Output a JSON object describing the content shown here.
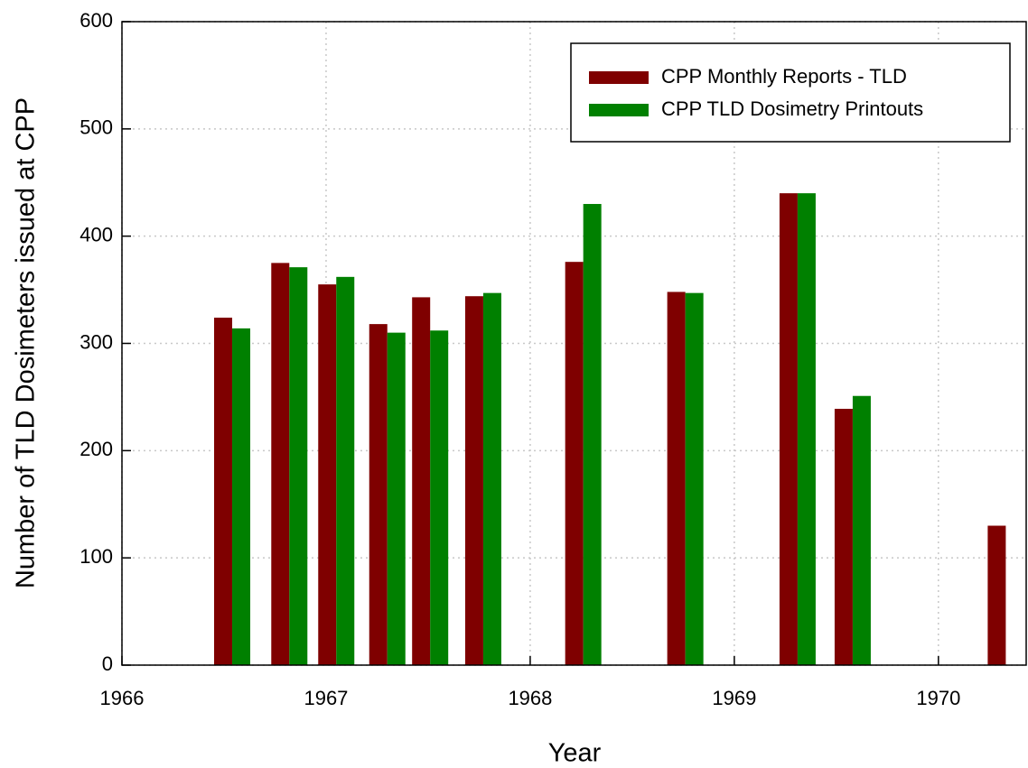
{
  "chart_data": {
    "type": "bar",
    "x_label": "Year",
    "y_label": "Number of TLD Dosimeters issued at CPP",
    "x": [
      1966.54,
      1966.82,
      1967.05,
      1967.3,
      1967.51,
      1967.77,
      1968.26,
      1968.76,
      1969.31,
      1969.58,
      1970.33
    ],
    "series": [
      {
        "name": "CPP Monthly Reports - TLD",
        "color": "#7f0000",
        "values": [
          324,
          375,
          355,
          318,
          343,
          344,
          376,
          348,
          440,
          239,
          130
        ]
      },
      {
        "name": "CPP TLD Dosimetry Printouts",
        "color": "#008000",
        "values": [
          314,
          371,
          362,
          310,
          312,
          347,
          430,
          347,
          440,
          251,
          null
        ]
      }
    ],
    "xlim": [
      1966,
      1970.43
    ],
    "xticks": [
      1966,
      1967,
      1968,
      1969,
      1970
    ],
    "ylim": [
      0,
      600
    ],
    "yticks": [
      0,
      100,
      200,
      300,
      400,
      500,
      600
    ],
    "grid": true,
    "legend": "upper-right"
  }
}
